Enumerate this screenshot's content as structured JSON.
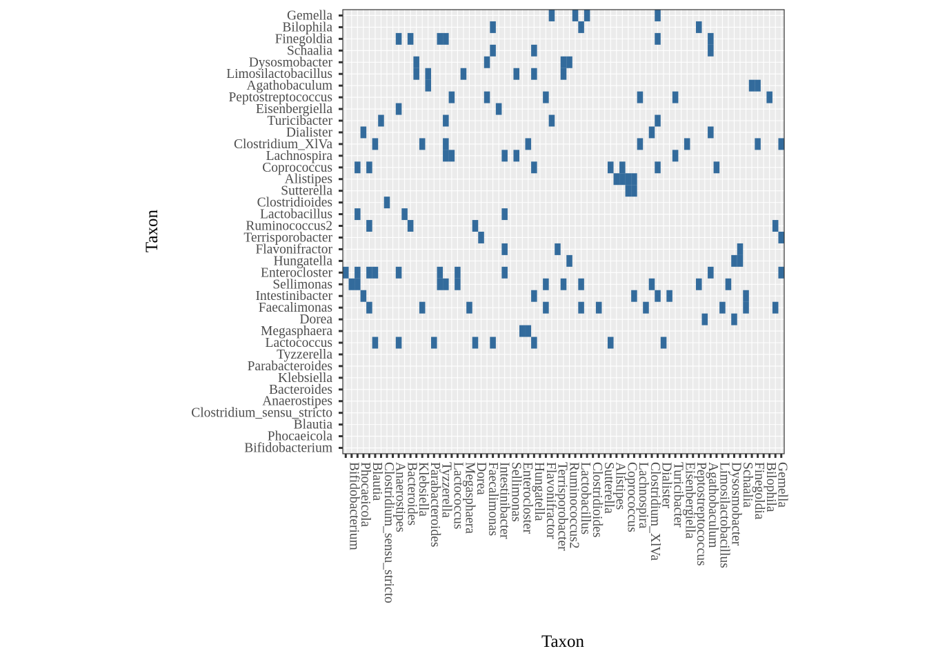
{
  "chart_data": {
    "type": "heatmap",
    "xlabel": "Taxon",
    "ylabel": "Taxon",
    "taxa": [
      "Bifidobacterium",
      "Phocaeicola",
      "Blautia",
      "Clostridium_sensu_stricto",
      "Anaerostipes",
      "Bacteroides",
      "Klebsiella",
      "Parabacteroides",
      "Tyzzerella",
      "Lactococcus",
      "Megasphaera",
      "Dorea",
      "Faecalimonas",
      "Intestinibacter",
      "Sellimonas",
      "Enterocloster",
      "Hungatella",
      "Flavonifractor",
      "Terrisporobacter",
      "Ruminococcus2",
      "Lactobacillus",
      "Clostridioides",
      "Sutterella",
      "Alistipes",
      "Coprococcus",
      "Lachnospira",
      "Clostridium_XlVa",
      "Dialister",
      "Turicibacter",
      "Eisenbergiella",
      "Peptostreptococcus",
      "Agathobaculum",
      "Limosilactobacillus",
      "Dysosmobacter",
      "Schaalia",
      "Finegoldia",
      "Bilophila",
      "Gemella"
    ],
    "colors": {
      "tile": "#336b9c",
      "panel": "#ebebeb",
      "grid": "#ffffff",
      "axis": "#333333"
    },
    "grid": true,
    "legend": "none",
    "present_cells": [
      [
        "Gemella",
        35
      ],
      [
        "Gemella",
        39
      ],
      [
        "Gemella",
        41
      ],
      [
        "Gemella",
        53
      ],
      [
        "Bilophila",
        25
      ],
      [
        "Bilophila",
        40
      ],
      [
        "Bilophila",
        60
      ],
      [
        "Finegoldia",
        17
      ],
      [
        "Finegoldia",
        16
      ],
      [
        "Finegoldia",
        9
      ],
      [
        "Finegoldia",
        11
      ],
      [
        "Finegoldia",
        53
      ],
      [
        "Finegoldia",
        62
      ],
      [
        "Schaalia",
        62
      ],
      [
        "Schaalia",
        25
      ],
      [
        "Schaalia",
        32
      ],
      [
        "Dysosmobacter",
        24
      ],
      [
        "Dysosmobacter",
        37
      ],
      [
        "Dysosmobacter",
        38
      ],
      [
        "Dysosmobacter",
        12
      ],
      [
        "Limosilactobacillus",
        12
      ],
      [
        "Limosilactobacillus",
        20
      ],
      [
        "Limosilactobacillus",
        29
      ],
      [
        "Limosilactobacillus",
        32
      ],
      [
        "Limosilactobacillus",
        37
      ],
      [
        "Limosilactobacillus",
        14
      ],
      [
        "Agathobaculum",
        14
      ],
      [
        "Agathobaculum",
        69
      ],
      [
        "Agathobaculum",
        70
      ],
      [
        "Peptostreptococcus",
        18
      ],
      [
        "Peptostreptococcus",
        24
      ],
      [
        "Peptostreptococcus",
        34
      ],
      [
        "Peptostreptococcus",
        50
      ],
      [
        "Peptostreptococcus",
        56
      ],
      [
        "Peptostreptococcus",
        72
      ],
      [
        "Eisenbergiella",
        26
      ],
      [
        "Eisenbergiella",
        9
      ],
      [
        "Turicibacter",
        6
      ],
      [
        "Turicibacter",
        17
      ],
      [
        "Turicibacter",
        35
      ],
      [
        "Turicibacter",
        53
      ],
      [
        "Dialister",
        3
      ],
      [
        "Dialister",
        52
      ],
      [
        "Dialister",
        62
      ],
      [
        "Clostridium_XlVa",
        5
      ],
      [
        "Clostridium_XlVa",
        13
      ],
      [
        "Clostridium_XlVa",
        17
      ],
      [
        "Clostridium_XlVa",
        31
      ],
      [
        "Clostridium_XlVa",
        50
      ],
      [
        "Clostridium_XlVa",
        58
      ],
      [
        "Clostridium_XlVa",
        70
      ],
      [
        "Clostridium_XlVa",
        74
      ],
      [
        "Lachnospira",
        27
      ],
      [
        "Lachnospira",
        17
      ],
      [
        "Lachnospira",
        18
      ],
      [
        "Lachnospira",
        29
      ],
      [
        "Lachnospira",
        56
      ],
      [
        "Coprococcus",
        2
      ],
      [
        "Coprococcus",
        4
      ],
      [
        "Coprococcus",
        32
      ],
      [
        "Coprococcus",
        45
      ],
      [
        "Coprococcus",
        47
      ],
      [
        "Coprococcus",
        53
      ],
      [
        "Coprococcus",
        63
      ],
      [
        "Alistipes",
        46
      ],
      [
        "Alistipes",
        47
      ],
      [
        "Alistipes",
        48
      ],
      [
        "Alistipes",
        49
      ],
      [
        "Sutterella",
        49
      ],
      [
        "Sutterella",
        48
      ],
      [
        "Clostridioides",
        7
      ],
      [
        "Lactobacillus",
        2
      ],
      [
        "Lactobacillus",
        10
      ],
      [
        "Lactobacillus",
        27
      ],
      [
        "Ruminococcus2",
        4
      ],
      [
        "Ruminococcus2",
        11
      ],
      [
        "Ruminococcus2",
        22
      ],
      [
        "Ruminococcus2",
        73
      ],
      [
        "Terrisporobacter",
        23
      ],
      [
        "Terrisporobacter",
        74
      ],
      [
        "Flavonifractor",
        27
      ],
      [
        "Flavonifractor",
        36
      ],
      [
        "Flavonifractor",
        67
      ],
      [
        "Hungatella",
        38
      ],
      [
        "Hungatella",
        66
      ],
      [
        "Hungatella",
        67
      ],
      [
        "Enterocloster",
        0
      ],
      [
        "Enterocloster",
        2
      ],
      [
        "Enterocloster",
        4
      ],
      [
        "Enterocloster",
        5
      ],
      [
        "Enterocloster",
        9
      ],
      [
        "Enterocloster",
        16
      ],
      [
        "Enterocloster",
        19
      ],
      [
        "Enterocloster",
        27
      ],
      [
        "Enterocloster",
        62
      ],
      [
        "Enterocloster",
        74
      ],
      [
        "Sellimonas",
        1
      ],
      [
        "Sellimonas",
        2
      ],
      [
        "Sellimonas",
        16
      ],
      [
        "Sellimonas",
        17
      ],
      [
        "Sellimonas",
        19
      ],
      [
        "Sellimonas",
        34
      ],
      [
        "Sellimonas",
        37
      ],
      [
        "Sellimonas",
        40
      ],
      [
        "Sellimonas",
        52
      ],
      [
        "Sellimonas",
        60
      ],
      [
        "Sellimonas",
        65
      ],
      [
        "Intestinibacter",
        3
      ],
      [
        "Intestinibacter",
        32
      ],
      [
        "Intestinibacter",
        49
      ],
      [
        "Intestinibacter",
        53
      ],
      [
        "Intestinibacter",
        55
      ],
      [
        "Intestinibacter",
        68
      ],
      [
        "Faecalimonas",
        4
      ],
      [
        "Faecalimonas",
        13
      ],
      [
        "Faecalimonas",
        21
      ],
      [
        "Faecalimonas",
        34
      ],
      [
        "Faecalimonas",
        40
      ],
      [
        "Faecalimonas",
        43
      ],
      [
        "Faecalimonas",
        51
      ],
      [
        "Faecalimonas",
        64
      ],
      [
        "Faecalimonas",
        68
      ],
      [
        "Faecalimonas",
        73
      ],
      [
        "Dorea",
        61
      ],
      [
        "Dorea",
        66
      ],
      [
        "Megasphaera",
        30
      ],
      [
        "Megasphaera",
        31
      ],
      [
        "Lactococcus",
        5
      ],
      [
        "Lactococcus",
        9
      ],
      [
        "Lactococcus",
        15
      ],
      [
        "Lactococcus",
        22
      ],
      [
        "Lactococcus",
        25
      ],
      [
        "Lactococcus",
        32
      ],
      [
        "Lactococcus",
        45
      ],
      [
        "Lactococcus",
        54
      ]
    ]
  }
}
